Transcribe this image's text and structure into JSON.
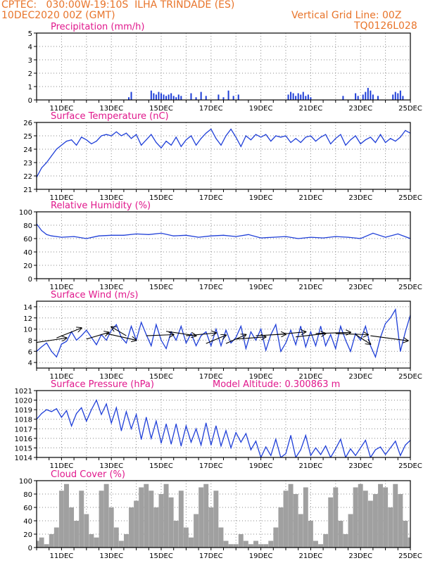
{
  "header": {
    "line1": "CPTEC:   030:00W-19:10S  ILHA TRINDADE (ES)",
    "line2": "10DEC2020 00Z (GMT)",
    "grid_note": "Vertical Grid Line: 00Z",
    "code": "TQ0126L028"
  },
  "chart_data": [
    {
      "type": "bar",
      "title": "Precipitation (mm/h)",
      "ylim": [
        0,
        5
      ],
      "yticks": [
        "0",
        "1",
        "2",
        "3",
        "4",
        "5"
      ],
      "xticks": [
        "11DEC",
        "13DEC",
        "15DEC",
        "17DEC",
        "19DEC",
        "21DEC",
        "23DEC",
        "25DEC"
      ],
      "xlim_days": [
        10,
        25
      ],
      "color": "#1f3fd8",
      "x": [
        13.7,
        13.8,
        14.6,
        14.7,
        14.8,
        14.9,
        15.0,
        15.1,
        15.2,
        15.3,
        15.4,
        15.5,
        15.6,
        15.7,
        15.8,
        16.2,
        16.4,
        16.6,
        16.8,
        17.3,
        17.5,
        17.7,
        17.9,
        18.1,
        20.1,
        20.2,
        20.3,
        20.4,
        20.5,
        20.6,
        20.7,
        20.8,
        20.9,
        21.0,
        22.3,
        22.8,
        22.9,
        23.1,
        23.2,
        23.3,
        23.4,
        23.5,
        23.7,
        24.3,
        24.4,
        24.5,
        24.6,
        24.7
      ],
      "values": [
        0.2,
        0.6,
        0.7,
        0.5,
        0.4,
        0.6,
        0.5,
        0.4,
        0.3,
        0.4,
        0.5,
        0.3,
        0.2,
        0.4,
        0.3,
        0.5,
        0.2,
        0.6,
        0.3,
        0.4,
        0.2,
        0.7,
        0.3,
        0.4,
        0.4,
        0.6,
        0.5,
        0.3,
        0.5,
        0.4,
        0.6,
        0.3,
        0.4,
        0.2,
        0.3,
        0.5,
        0.3,
        0.4,
        0.6,
        0.9,
        0.7,
        0.4,
        0.3,
        0.4,
        0.6,
        0.5,
        0.7,
        0.3
      ]
    },
    {
      "type": "line",
      "title": "Surface Temperature (nC)",
      "ylim": [
        21,
        26
      ],
      "yticks": [
        "21",
        "22",
        "23",
        "24",
        "25",
        "26"
      ],
      "xticks": [
        "11DEC",
        "13DEC",
        "15DEC",
        "17DEC",
        "19DEC",
        "21DEC",
        "23DEC",
        "25DEC"
      ],
      "xlim_days": [
        10,
        25
      ],
      "color": "#1f3fd8",
      "x": [
        10.0,
        10.2,
        10.4,
        10.6,
        10.8,
        11.0,
        11.2,
        11.4,
        11.6,
        11.8,
        12.0,
        12.2,
        12.4,
        12.6,
        12.8,
        13.0,
        13.2,
        13.4,
        13.6,
        13.8,
        14.0,
        14.2,
        14.4,
        14.6,
        14.8,
        15.0,
        15.2,
        15.4,
        15.6,
        15.8,
        16.0,
        16.2,
        16.4,
        16.6,
        16.8,
        17.0,
        17.2,
        17.4,
        17.6,
        17.8,
        18.0,
        18.2,
        18.4,
        18.6,
        18.8,
        19.0,
        19.2,
        19.4,
        19.6,
        19.8,
        20.0,
        20.2,
        20.4,
        20.6,
        20.8,
        21.0,
        21.2,
        21.4,
        21.6,
        21.8,
        22.0,
        22.2,
        22.4,
        22.6,
        22.8,
        23.0,
        23.2,
        23.4,
        23.6,
        23.8,
        24.0,
        24.2,
        24.4,
        24.6,
        24.8,
        25.0
      ],
      "values": [
        21.9,
        22.6,
        23.0,
        23.5,
        24.0,
        24.3,
        24.6,
        24.7,
        24.3,
        24.9,
        24.7,
        24.4,
        24.6,
        25.0,
        25.1,
        25.0,
        25.3,
        25.0,
        25.2,
        24.8,
        25.1,
        24.3,
        24.7,
        25.1,
        24.5,
        24.1,
        24.6,
        24.3,
        24.9,
        24.2,
        24.7,
        25.0,
        24.3,
        24.8,
        25.2,
        25.5,
        24.8,
        24.3,
        25.0,
        25.5,
        24.9,
        24.2,
        25.0,
        24.7,
        25.1,
        24.9,
        25.1,
        24.6,
        25.0,
        24.9,
        25.0,
        24.5,
        24.8,
        24.5,
        24.9,
        25.0,
        24.6,
        24.9,
        25.1,
        24.4,
        24.8,
        25.1,
        24.3,
        24.7,
        25.0,
        24.4,
        24.7,
        24.9,
        24.5,
        25.1,
        24.5,
        24.8,
        24.6,
        24.9,
        25.4,
        25.2
      ]
    },
    {
      "type": "line",
      "title": "Relative Humidity (%)",
      "ylim": [
        0,
        100
      ],
      "yticks": [
        "0",
        "20",
        "40",
        "60",
        "80",
        "100"
      ],
      "xticks": [
        "11DEC",
        "13DEC",
        "15DEC",
        "17DEC",
        "19DEC",
        "21DEC",
        "23DEC",
        "25DEC"
      ],
      "xlim_days": [
        10,
        25
      ],
      "color": "#1f3fd8",
      "x": [
        10.0,
        10.2,
        10.4,
        10.6,
        10.8,
        11.0,
        11.5,
        12.0,
        12.5,
        13.0,
        13.5,
        14.0,
        14.5,
        15.0,
        15.5,
        16.0,
        16.5,
        17.0,
        17.5,
        18.0,
        18.5,
        19.0,
        19.5,
        20.0,
        20.5,
        21.0,
        21.5,
        22.0,
        22.5,
        23.0,
        23.5,
        24.0,
        24.5,
        25.0
      ],
      "values": [
        82,
        72,
        66,
        64,
        63,
        62,
        63,
        60,
        64,
        65,
        65,
        67,
        66,
        68,
        64,
        65,
        62,
        64,
        65,
        63,
        66,
        61,
        62,
        63,
        60,
        62,
        61,
        63,
        62,
        60,
        68,
        62,
        67,
        60
      ]
    },
    {
      "type": "line",
      "title": "Surface Wind (m/s)",
      "ylim": [
        3,
        15
      ],
      "yticks": [
        "4",
        "6",
        "8",
        "10",
        "12",
        "14"
      ],
      "xticks": [
        "11DEC",
        "13DEC",
        "15DEC",
        "17DEC",
        "19DEC",
        "21DEC",
        "23DEC",
        "25DEC"
      ],
      "xlim_days": [
        10,
        25
      ],
      "color": "#1f3fd8",
      "x": [
        10.0,
        10.2,
        10.4,
        10.6,
        10.8,
        11.0,
        11.2,
        11.4,
        11.6,
        11.8,
        12.0,
        12.2,
        12.4,
        12.6,
        12.8,
        13.0,
        13.2,
        13.4,
        13.6,
        13.8,
        14.0,
        14.2,
        14.4,
        14.6,
        14.8,
        15.0,
        15.2,
        15.4,
        15.6,
        15.8,
        16.0,
        16.2,
        16.4,
        16.6,
        16.8,
        17.0,
        17.2,
        17.4,
        17.6,
        17.8,
        18.0,
        18.2,
        18.4,
        18.6,
        18.8,
        19.0,
        19.2,
        19.4,
        19.6,
        19.8,
        20.0,
        20.2,
        20.4,
        20.6,
        20.8,
        21.0,
        21.2,
        21.4,
        21.6,
        21.8,
        22.0,
        22.2,
        22.4,
        22.6,
        22.8,
        23.0,
        23.2,
        23.4,
        23.6,
        23.8,
        24.0,
        24.2,
        24.4,
        24.6,
        24.8,
        25.0
      ],
      "values": [
        6.0,
        6.8,
        7.5,
        6.0,
        5.0,
        7.3,
        7.8,
        9.5,
        8.0,
        8.8,
        9.8,
        8.5,
        7.2,
        9.0,
        8.0,
        9.8,
        10.8,
        8.5,
        7.5,
        10.5,
        8.0,
        11.2,
        9.0,
        7.0,
        10.8,
        8.0,
        6.5,
        9.5,
        8.0,
        10.5,
        7.5,
        9.2,
        7.0,
        8.8,
        9.5,
        7.0,
        10.0,
        7.0,
        9.8,
        7.5,
        8.5,
        10.5,
        6.5,
        9.5,
        8.0,
        10.0,
        6.2,
        9.0,
        10.8,
        6.0,
        7.5,
        9.8,
        7.2,
        10.5,
        6.8,
        9.5,
        7.0,
        10.5,
        7.0,
        9.0,
        6.5,
        10.5,
        8.0,
        6.0,
        9.2,
        8.0,
        10.5,
        7.0,
        5.0,
        8.5,
        11.0,
        12.0,
        13.5,
        6.0,
        9.5,
        12.5
      ],
      "wind_vectors": [
        [
          10.0,
          7.6,
          11.2,
          8.4
        ],
        [
          10.8,
          8.4,
          11.8,
          10.2
        ],
        [
          12.0,
          8.2,
          12.9,
          9.4
        ],
        [
          12.8,
          9.2,
          14.0,
          8.0
        ],
        [
          13.6,
          8.8,
          13.0,
          10.4
        ],
        [
          14.4,
          8.8,
          15.5,
          9.0
        ],
        [
          15.2,
          9.6,
          16.4,
          8.8
        ],
        [
          16.0,
          8.8,
          17.2,
          9.3
        ],
        [
          16.8,
          7.4,
          17.6,
          8.9
        ],
        [
          17.6,
          7.4,
          18.4,
          9.0
        ],
        [
          18.0,
          8.2,
          19.2,
          8.6
        ],
        [
          18.8,
          8.8,
          20.0,
          9.1
        ],
        [
          19.6,
          9.0,
          20.8,
          9.5
        ],
        [
          20.4,
          8.6,
          21.6,
          9.2
        ],
        [
          21.2,
          9.2,
          22.6,
          9.4
        ],
        [
          22.0,
          9.2,
          23.3,
          9.0
        ],
        [
          22.8,
          9.0,
          23.4,
          7.3
        ],
        [
          23.4,
          8.8,
          24.9,
          7.9
        ]
      ]
    },
    {
      "type": "line",
      "title": "Surface Pressure (hPa)",
      "subtitle": "Model Altitude: 0.300863 m",
      "ylim": [
        1014,
        1021
      ],
      "yticks": [
        "1014",
        "1015",
        "1016",
        "1017",
        "1018",
        "1019",
        "1020",
        "1021"
      ],
      "xticks": [
        "11DEC",
        "13DEC",
        "15DEC",
        "17DEC",
        "19DEC",
        "21DEC",
        "23DEC",
        "25DEC"
      ],
      "xlim_days": [
        10,
        25
      ],
      "color": "#1f3fd8",
      "x": [
        10.0,
        10.2,
        10.4,
        10.6,
        10.8,
        11.0,
        11.2,
        11.4,
        11.6,
        11.8,
        12.0,
        12.2,
        12.4,
        12.6,
        12.8,
        13.0,
        13.2,
        13.4,
        13.6,
        13.8,
        14.0,
        14.2,
        14.4,
        14.6,
        14.8,
        15.0,
        15.2,
        15.4,
        15.6,
        15.8,
        16.0,
        16.2,
        16.4,
        16.6,
        16.8,
        17.0,
        17.2,
        17.4,
        17.6,
        17.8,
        18.0,
        18.2,
        18.4,
        18.6,
        18.8,
        19.0,
        19.2,
        19.4,
        19.6,
        19.8,
        20.0,
        20.2,
        20.4,
        20.6,
        20.8,
        21.0,
        21.2,
        21.4,
        21.6,
        21.8,
        22.0,
        22.2,
        22.4,
        22.6,
        22.8,
        23.0,
        23.2,
        23.4,
        23.6,
        23.8,
        24.0,
        24.2,
        24.4,
        24.6,
        24.8,
        25.0
      ],
      "values": [
        1018.0,
        1018.6,
        1019.0,
        1018.8,
        1019.1,
        1018.2,
        1018.9,
        1017.3,
        1018.6,
        1019.2,
        1017.8,
        1019.0,
        1020.0,
        1018.5,
        1019.6,
        1017.6,
        1019.2,
        1016.8,
        1018.8,
        1017.0,
        1018.5,
        1015.9,
        1018.2,
        1016.0,
        1017.8,
        1015.5,
        1017.5,
        1015.4,
        1017.5,
        1015.2,
        1017.3,
        1015.6,
        1017.0,
        1015.3,
        1017.6,
        1015.3,
        1017.3,
        1015.2,
        1016.8,
        1015.0,
        1016.6,
        1015.6,
        1016.5,
        1014.8,
        1015.7,
        1014.0,
        1015.1,
        1014.2,
        1015.9,
        1014.0,
        1014.4,
        1016.3,
        1014.0,
        1014.8,
        1016.3,
        1014.2,
        1015.0,
        1014.3,
        1015.2,
        1014.0,
        1014.9,
        1015.9,
        1014.0,
        1014.9,
        1014.2,
        1015.0,
        1015.8,
        1014.0,
        1014.8,
        1015.1,
        1014.3,
        1015.0,
        1015.7,
        1014.2,
        1015.3,
        1015.8
      ]
    },
    {
      "type": "bar",
      "title": "Cloud Cover (%)",
      "ylim": [
        0,
        100
      ],
      "yticks": [
        "0",
        "20",
        "40",
        "60",
        "80",
        "100"
      ],
      "xticks": [
        "11DEC",
        "13DEC",
        "15DEC",
        "17DEC",
        "19DEC",
        "21DEC",
        "23DEC",
        "25DEC"
      ],
      "xlim_days": [
        10,
        25
      ],
      "color": "#a0a0a0",
      "x": [
        10.0,
        10.2,
        10.4,
        10.6,
        10.8,
        11.0,
        11.2,
        11.4,
        11.6,
        11.8,
        12.0,
        12.2,
        12.4,
        12.6,
        12.8,
        13.0,
        13.2,
        13.4,
        13.6,
        13.8,
        14.0,
        14.2,
        14.4,
        14.6,
        14.8,
        15.0,
        15.2,
        15.4,
        15.6,
        15.8,
        16.0,
        16.2,
        16.4,
        16.6,
        16.8,
        17.0,
        17.2,
        17.4,
        17.6,
        17.8,
        18.0,
        18.2,
        18.4,
        18.6,
        18.8,
        19.0,
        19.2,
        19.4,
        19.6,
        19.8,
        20.0,
        20.2,
        20.4,
        20.6,
        20.8,
        21.0,
        21.2,
        21.4,
        21.6,
        21.8,
        22.0,
        22.2,
        22.4,
        22.6,
        22.8,
        23.0,
        23.2,
        23.4,
        23.6,
        23.8,
        24.0,
        24.2,
        24.4,
        24.6,
        24.8,
        25.0
      ],
      "values": [
        10,
        15,
        5,
        20,
        30,
        85,
        95,
        60,
        40,
        85,
        50,
        20,
        15,
        85,
        95,
        60,
        30,
        10,
        20,
        60,
        70,
        90,
        95,
        85,
        60,
        80,
        95,
        75,
        40,
        85,
        30,
        15,
        50,
        90,
        95,
        60,
        85,
        30,
        10,
        5,
        5,
        20,
        10,
        5,
        10,
        5,
        5,
        10,
        30,
        60,
        85,
        95,
        80,
        50,
        90,
        40,
        10,
        5,
        20,
        75,
        90,
        40,
        20,
        50,
        90,
        95,
        85,
        70,
        80,
        95,
        90,
        60,
        95,
        80,
        40,
        15
      ]
    }
  ]
}
